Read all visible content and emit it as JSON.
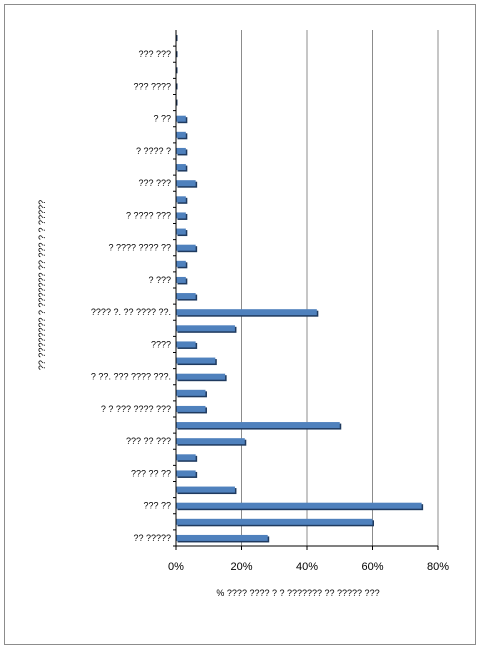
{
  "chart_data": {
    "type": "bar",
    "orientation": "horizontal",
    "xlabel": "% ???? ???? ? ? ??????? ?? ?????  ???",
    "ylabel": "?? ???????? ? ??????? ?? ??? ? ? ?????",
    "xlim": [
      0,
      80
    ],
    "xticks": [
      0,
      20,
      40,
      60,
      80
    ],
    "xtick_labels": [
      "0%",
      "20%",
      "40%",
      "60%",
      "80%"
    ],
    "grid": true,
    "legend": false,
    "bar_color": "#4f81bd",
    "categories": [
      "?? ?????",
      "",
      "??? ??",
      "",
      "??? ?? ??",
      "",
      "??? ?? ???",
      "",
      "? ? ??? ???? ???",
      "",
      "? ??. ??? ???? ???.",
      "",
      "????",
      "",
      "???? ?. ?? ???? ??.",
      "",
      "? ???",
      "",
      "? ???? ???? ??",
      "",
      "? ???? ???",
      "",
      "??? ???",
      "",
      "? ???? ?",
      "",
      "? ??",
      "",
      "??? ????",
      "",
      "??? ???",
      ""
    ],
    "values": [
      28,
      60,
      75,
      18,
      6,
      6,
      21,
      50,
      9,
      9,
      15,
      12,
      6,
      18,
      43,
      6,
      3,
      3,
      6,
      3,
      3,
      3,
      6,
      3,
      3,
      3,
      3,
      0,
      0,
      0,
      0,
      0
    ]
  }
}
